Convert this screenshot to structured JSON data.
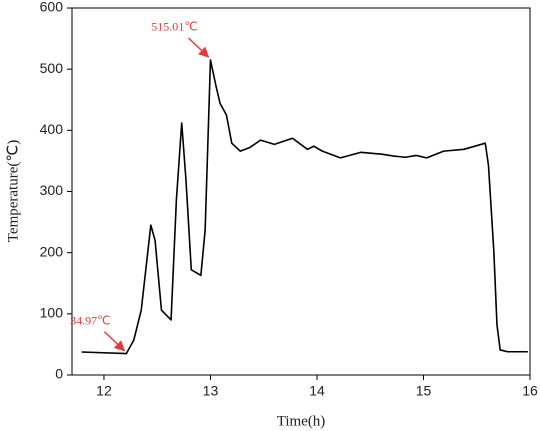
{
  "chart_data": {
    "type": "line",
    "x_label": "Time(h)",
    "y_label": "Temperature(℃)",
    "xlim": [
      11.7,
      16.0
    ],
    "xticks": [
      12,
      13,
      14,
      15,
      16
    ],
    "ylim": [
      0,
      600
    ],
    "yticks": [
      0,
      100,
      200,
      300,
      400,
      500,
      600
    ],
    "x": [
      11.79,
      12.21,
      12.28,
      12.35,
      12.44,
      12.48,
      12.54,
      12.63,
      12.68,
      12.73,
      12.77,
      12.82,
      12.91,
      12.95,
      13.0,
      13.05,
      13.09,
      13.15,
      13.2,
      13.28,
      13.37,
      13.47,
      13.6,
      13.77,
      13.91,
      13.97,
      14.05,
      14.22,
      14.41,
      14.61,
      14.72,
      14.83,
      14.93,
      15.03,
      15.19,
      15.38,
      15.58,
      15.61,
      15.66,
      15.69,
      15.72,
      15.79,
      15.98
    ],
    "series": [
      {
        "color": "#000000",
        "values": [
          37.6,
          34.97,
          57,
          106,
          245,
          220,
          106,
          90,
          286,
          412,
          319,
          172,
          163,
          237,
          515.01,
          474,
          444,
          425,
          379,
          366,
          372,
          384,
          377,
          387,
          369,
          374,
          366,
          355,
          364,
          361,
          358,
          356,
          359,
          355,
          366,
          369,
          379,
          343,
          204,
          82,
          41,
          38,
          38
        ],
        "value_labels": [
          null,
          "34.97℃",
          null,
          null,
          null,
          null,
          null,
          null,
          null,
          null,
          null,
          null,
          null,
          null,
          "515.01℃",
          null,
          null,
          null,
          null,
          null,
          null,
          null,
          null,
          null,
          null,
          null,
          null,
          null,
          null,
          null,
          null,
          null,
          null,
          null,
          null,
          null,
          null,
          null,
          null,
          null,
          null,
          null,
          null
        ],
        "label_color": "#e8383b"
      }
    ]
  }
}
